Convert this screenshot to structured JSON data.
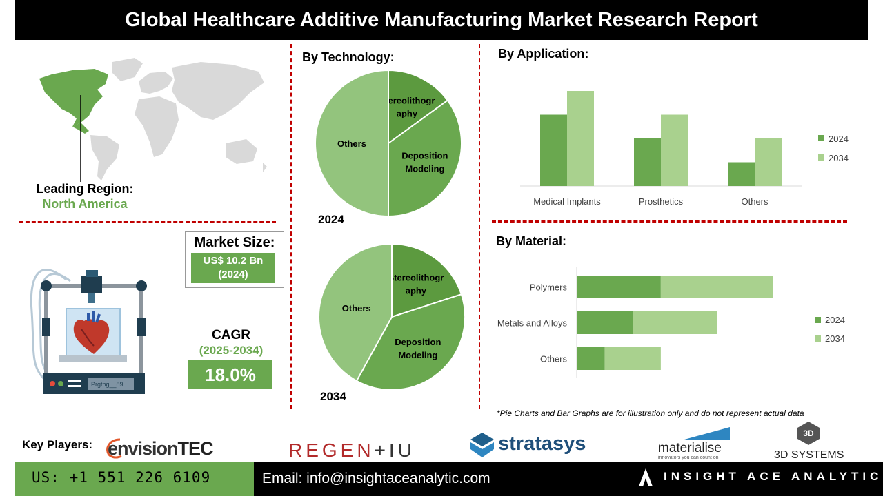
{
  "header": {
    "title": "Global Healthcare Additive Manufacturing Market Research Report"
  },
  "region": {
    "label": "Leading Region:",
    "value": "North America"
  },
  "market_size": {
    "title": "Market Size:",
    "value_line1": "US$ 10.2 Bn",
    "value_line2": "(2024)"
  },
  "cagr": {
    "title": "CAGR",
    "period": "(2025-2034)",
    "value": "18.0%"
  },
  "printer_display_text": "Prgthg__89",
  "technology": {
    "heading": "By Technology:",
    "year_2024": "2024",
    "year_2034": "2034",
    "labels": {
      "stereo_line1": "Stereolithogr",
      "stereo_line2": "aphy",
      "deposition_line1": "Deposition",
      "deposition_line2": "Modeling",
      "others": "Others"
    }
  },
  "application": {
    "heading": "By Application:"
  },
  "material": {
    "heading": "By Material:"
  },
  "footnote": "*Pie Charts and Bar Graphs are for illustration only and do not represent actual data",
  "key_players": {
    "label": "Key Players:",
    "envisiontec_a": "envision",
    "envisiontec_b": "TEC",
    "regenhu_a": "REGEN",
    "regenhu_b": "+IU",
    "stratasys": "stratasys",
    "materialise": "materialise",
    "materialise_tagline": "innovators you can count on",
    "systems3d_a": "3D",
    "systems3d_b": "3D SYSTEMS"
  },
  "footer": {
    "phone": "US: +1 551 226 6109",
    "email": "Email: info@insightaceanalytic.com",
    "brand": "INSIGHT ACE ANALYTIC"
  },
  "colors": {
    "dark_green": "#5c9a3f",
    "mid_green": "#6aa84f",
    "light_green": "#93c47d",
    "pale_green": "#a9d18e",
    "accent_red": "#c00000"
  },
  "chart_data": [
    {
      "type": "pie",
      "title": "2024",
      "categories": [
        "Stereolithography",
        "Deposition Modeling",
        "Others"
      ],
      "values": [
        15,
        35,
        50
      ]
    },
    {
      "type": "pie",
      "title": "2034",
      "categories": [
        "Stereolithography",
        "Deposition Modeling",
        "Others"
      ],
      "values": [
        20,
        38,
        42
      ]
    },
    {
      "type": "bar",
      "title": "By Application:",
      "categories": [
        "Medical Implants",
        "Prosthetics",
        "Others"
      ],
      "series": [
        {
          "name": "2024",
          "values": [
            3,
            2,
            1
          ]
        },
        {
          "name": "2034",
          "values": [
            4,
            3,
            2
          ]
        }
      ],
      "ylim": [
        0,
        4
      ],
      "legend": "right"
    },
    {
      "type": "bar",
      "orientation": "horizontal",
      "stacked": true,
      "title": "By Material:",
      "categories": [
        "Polymers",
        "Metals and Alloys",
        "Others"
      ],
      "series": [
        {
          "name": "2024",
          "values": [
            3,
            2,
            1
          ]
        },
        {
          "name": "2034",
          "values": [
            4,
            3,
            2
          ]
        }
      ],
      "xlim": [
        0,
        8
      ],
      "legend": "right"
    }
  ]
}
